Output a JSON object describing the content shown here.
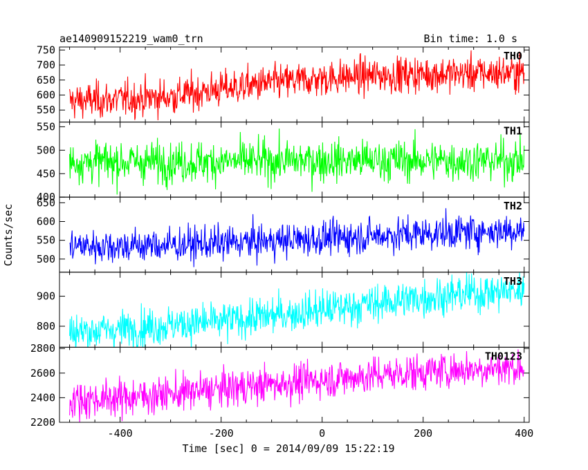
{
  "header": {
    "title": "ae140909152219_wam0_trn",
    "bin_time": "Bin time: 1.0 s"
  },
  "chart_data": {
    "type": "line",
    "xlabel": "Time [sec] 0 = 2014/09/09 15:22:19",
    "ylabel": "Counts/sec",
    "xlim": [
      -520,
      410
    ],
    "xticks": [
      -400,
      -200,
      0,
      200,
      400
    ],
    "x_range": [
      -500,
      400
    ],
    "x_step": 1,
    "panels": [
      {
        "label": "TH0",
        "color": "#ff0000",
        "ylim": [
          510,
          760
        ],
        "yticks": [
          550,
          600,
          650,
          700,
          750
        ],
        "trend_x": [
          -500,
          -400,
          -300,
          -200,
          -100,
          0,
          100,
          200,
          300,
          400
        ],
        "trend_y": [
          580,
          585,
          595,
          620,
          640,
          655,
          665,
          670,
          672,
          675
        ],
        "noise": 30
      },
      {
        "label": "TH1",
        "color": "#00ff00",
        "ylim": [
          400,
          560
        ],
        "yticks": [
          400,
          450,
          500,
          550
        ],
        "trend_x": [
          -500,
          -250,
          0,
          250,
          400
        ],
        "trend_y": [
          475,
          475,
          478,
          478,
          478
        ],
        "noise": 22
      },
      {
        "label": "TH2",
        "color": "#0000ff",
        "ylim": [
          465,
          665
        ],
        "yticks": [
          500,
          550,
          600,
          650
        ],
        "trend_x": [
          -500,
          -400,
          -300,
          -200,
          -100,
          0,
          100,
          200,
          300,
          400
        ],
        "trend_y": [
          535,
          535,
          537,
          542,
          548,
          555,
          562,
          568,
          573,
          578
        ],
        "noise": 23
      },
      {
        "label": "TH3",
        "color": "#00ffff",
        "ylim": [
          730,
          980
        ],
        "yticks": [
          800,
          900
        ],
        "trend_x": [
          -500,
          -400,
          -300,
          -200,
          -100,
          0,
          100,
          200,
          300,
          400
        ],
        "trend_y": [
          780,
          790,
          805,
          815,
          835,
          855,
          875,
          895,
          910,
          920
        ],
        "noise": 32
      },
      {
        "label": "TH0123",
        "color": "#ff00ff",
        "ylim": [
          2200,
          2810
        ],
        "yticks": [
          2200,
          2400,
          2600,
          2800
        ],
        "trend_x": [
          -500,
          -400,
          -300,
          -200,
          -100,
          0,
          100,
          200,
          300,
          400
        ],
        "trend_y": [
          2380,
          2400,
          2430,
          2470,
          2510,
          2545,
          2580,
          2610,
          2635,
          2650
        ],
        "noise": 75
      }
    ]
  }
}
